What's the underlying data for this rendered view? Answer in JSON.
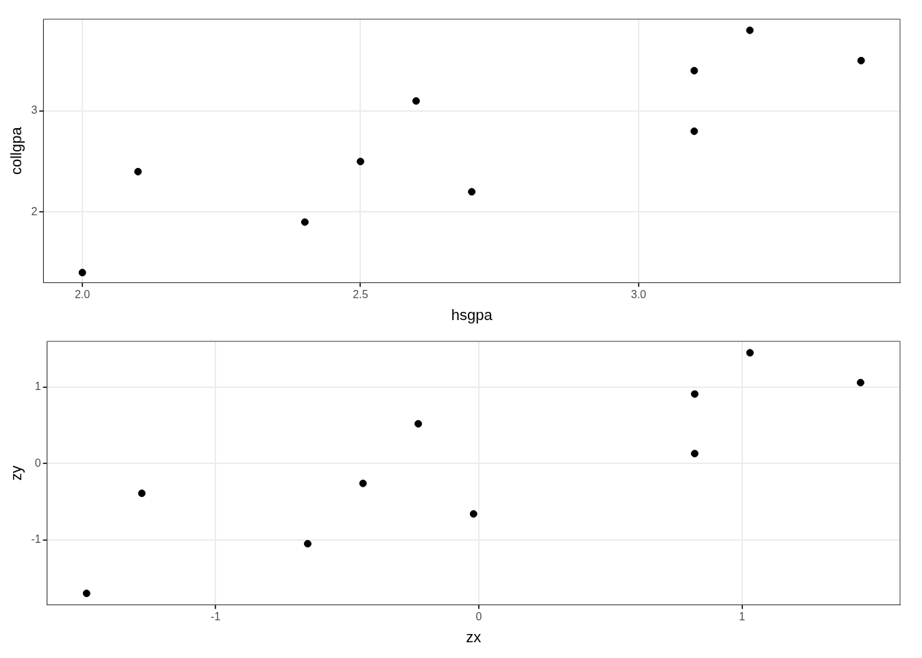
{
  "chart_data": [
    {
      "type": "scatter",
      "xlabel": "hsgpa",
      "ylabel": "collgpa",
      "x": [
        2.0,
        2.1,
        2.4,
        2.5,
        2.6,
        2.7,
        3.1,
        3.1,
        3.2,
        3.4
      ],
      "series": [
        {
          "color": "#000000",
          "values": [
            1.4,
            2.4,
            1.9,
            2.5,
            3.1,
            2.2,
            3.4,
            2.8,
            3.8,
            3.5
          ]
        }
      ],
      "xlim": [
        1.93,
        3.47
      ],
      "ylim": [
        1.3,
        3.91
      ],
      "xticks": [
        {
          "value": 2,
          "label": "2.0"
        },
        {
          "value": 2.5,
          "label": "2.5"
        },
        {
          "value": 3,
          "label": "3.0"
        }
      ],
      "yticks": [
        2,
        3
      ],
      "grid": true,
      "marker": "circle"
    },
    {
      "type": "scatter",
      "xlabel": "zx",
      "ylabel": "zy",
      "x": [
        -1.49,
        -1.28,
        -0.65,
        -0.44,
        -0.23,
        -0.02,
        0.82,
        0.82,
        1.03,
        1.45
      ],
      "series": [
        {
          "color": "#000000",
          "values": [
            -1.7,
            -0.39,
            -1.05,
            -0.26,
            0.52,
            -0.66,
            0.91,
            0.13,
            1.45,
            1.06
          ]
        }
      ],
      "xlim": [
        -1.64,
        1.6
      ],
      "ylim": [
        -1.85,
        1.6
      ],
      "xticks": [
        -1,
        0,
        1
      ],
      "yticks": [
        -1,
        0,
        1
      ],
      "grid": true,
      "marker": "circle"
    }
  ]
}
